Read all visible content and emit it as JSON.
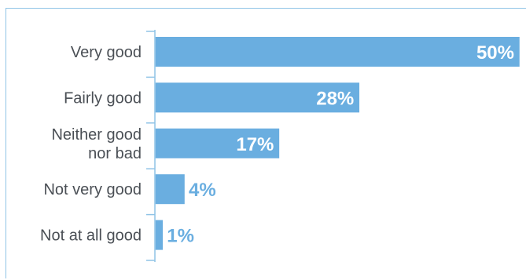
{
  "chart_data": {
    "type": "bar",
    "orientation": "horizontal",
    "categories": [
      [
        "Very good"
      ],
      [
        "Fairly good"
      ],
      [
        "Neither good",
        "nor bad"
      ],
      [
        "Not very good"
      ],
      [
        "Not at all good"
      ]
    ],
    "values": [
      50,
      28,
      17,
      4,
      1
    ],
    "value_labels": [
      "50%",
      "28%",
      "17%",
      "4%",
      "1%"
    ],
    "xlim": [
      0,
      50
    ],
    "grid": false,
    "colors": {
      "bar": "#6aaee0",
      "label_inside": "#ffffff",
      "label_outside": "#6aaee0",
      "axis": "#8fc3e6",
      "frame": "#8fc3e6"
    }
  }
}
